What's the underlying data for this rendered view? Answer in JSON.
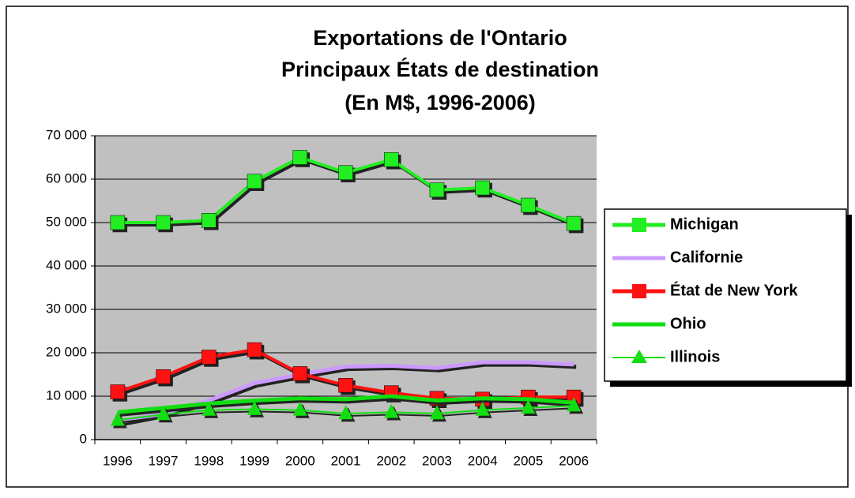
{
  "chart_data": {
    "type": "line",
    "title": [
      "Exportations de l'Ontario",
      "Principaux États de destination",
      "(En M$, 1996-2006)"
    ],
    "categories": [
      "1996",
      "1997",
      "1998",
      "1999",
      "2000",
      "2001",
      "2002",
      "2003",
      "2004",
      "2005",
      "2006"
    ],
    "series": [
      {
        "name": "Michigan",
        "color": "#22ee22",
        "marker": "square",
        "values": [
          50000,
          50000,
          50500,
          59500,
          65000,
          61500,
          64500,
          57500,
          58000,
          54000,
          49800
        ]
      },
      {
        "name": "Californie",
        "color": "#cc99ff",
        "marker": "none",
        "values": [
          4000,
          6000,
          9000,
          13000,
          15000,
          16800,
          17000,
          16500,
          17800,
          17800,
          17300
        ]
      },
      {
        "name": "État de New York",
        "color": "#ff1111",
        "marker": "square",
        "values": [
          11000,
          14500,
          19000,
          20700,
          15200,
          12500,
          10800,
          9500,
          9300,
          9800,
          9800
        ]
      },
      {
        "name": "Ohio",
        "color": "#11dd11",
        "marker": "none",
        "values": [
          6300,
          7300,
          8300,
          9000,
          9500,
          9300,
          10000,
          9000,
          9500,
          9300,
          8500
        ]
      },
      {
        "name": "Illinois",
        "color": "#11dd11",
        "marker": "triangle",
        "values": [
          4500,
          5800,
          6800,
          7000,
          6800,
          6000,
          6300,
          6000,
          6800,
          7300,
          7800
        ]
      }
    ],
    "ylim": [
      0,
      70000
    ],
    "yticks": [
      0,
      {
        "value": 10000,
        "label": "10 000"
      },
      {
        "value": 20000,
        "label": "20 000"
      },
      {
        "value": 30000,
        "label": "30 000"
      },
      {
        "value": 40000,
        "label": "40 000"
      },
      {
        "value": 50000,
        "label": "50 000"
      },
      {
        "value": 60000,
        "label": "60 000"
      },
      {
        "value": 70000,
        "label": "70 000"
      }
    ],
    "grid": true,
    "legend": "right"
  }
}
